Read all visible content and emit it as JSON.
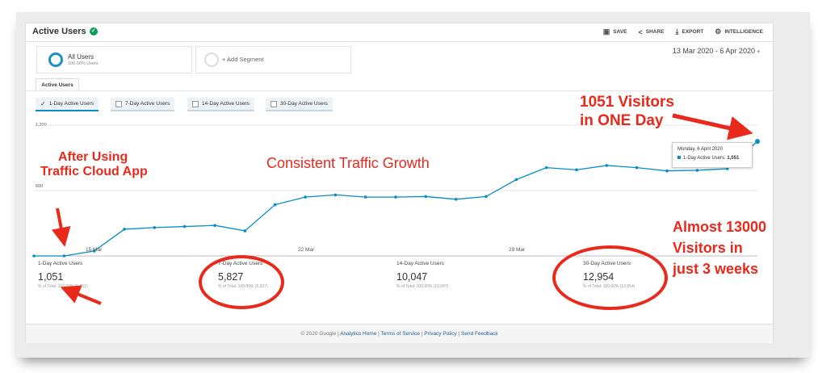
{
  "header": {
    "title": "Active Users",
    "toolbar": {
      "save": "SAVE",
      "share": "SHARE",
      "export": "EXPORT",
      "intelligence": "INTELLIGENCE"
    }
  },
  "segments": {
    "all_users_name": "All Users",
    "all_users_sub": "100.00% Users",
    "add_segment": "+ Add Segment"
  },
  "date_range": "13 Mar 2020 - 6 Apr 2020",
  "tab_label": "Active Users",
  "metric_toggles": [
    {
      "label": "1-Day Active Users",
      "selected": true
    },
    {
      "label": "7-Day Active Users",
      "selected": false
    },
    {
      "label": "14-Day Active Users",
      "selected": false
    },
    {
      "label": "30-Day Active Users",
      "selected": false
    }
  ],
  "chart_data": {
    "type": "line",
    "series": [
      {
        "name": "1-Day Active Users",
        "values": [
          0,
          0,
          45,
          245,
          260,
          270,
          280,
          230,
          470,
          540,
          560,
          540,
          540,
          545,
          520,
          545,
          700,
          810,
          790,
          830,
          810,
          780,
          785,
          800,
          1051
        ]
      }
    ],
    "x": [
      "13 Mar",
      "14 Mar",
      "15 Mar",
      "16 Mar",
      "17 Mar",
      "18 Mar",
      "19 Mar",
      "20 Mar",
      "21 Mar",
      "22 Mar",
      "23 Mar",
      "24 Mar",
      "25 Mar",
      "26 Mar",
      "27 Mar",
      "28 Mar",
      "29 Mar",
      "30 Mar",
      "31 Mar",
      "1 Apr",
      "2 Apr",
      "3 Apr",
      "4 Apr",
      "5 Apr",
      "6 Apr"
    ],
    "x_tick_labels": [
      "15 Mar",
      "22 Mar",
      "29 Mar"
    ],
    "y_tick_labels": [
      "1,200",
      "600"
    ],
    "ylim": [
      0,
      1200
    ],
    "grid": true,
    "color": "#058dc7",
    "tooltip": {
      "date": "Monday, 6 April 2020",
      "label": "1-Day Active Users:",
      "value": "1,051"
    }
  },
  "stats": [
    {
      "label": "1-Day Active Users",
      "value": "1,051",
      "sub": "% of Total: 100.00% (1,051)"
    },
    {
      "label": "7-Day Active Users",
      "value": "5,827",
      "sub": "% of Total: 100.00% (5,827)"
    },
    {
      "label": "14-Day Active Users",
      "value": "10,047",
      "sub": "% of Total: 100.00% (10,047)"
    },
    {
      "label": "30-Day Active Users",
      "value": "12,954",
      "sub": "% of Total: 100.00% (12,954)"
    }
  ],
  "footer": {
    "copyright": "© 2020 Google",
    "links": [
      "Analytics Home",
      "Terms of Service",
      "Privacy Policy",
      "Send Feedback"
    ]
  },
  "annotations": {
    "visitors_line1": "1051 Visitors",
    "visitors_line2": "in ONE Day",
    "after_line1": "After Using",
    "after_line2": "Traffic Cloud App",
    "growth": "Consistent Traffic Growth",
    "almost_line1": "Almost 13000",
    "almost_line2": "Visitors in",
    "almost_line3": "just 3 weeks",
    "color": "#e8291c"
  }
}
